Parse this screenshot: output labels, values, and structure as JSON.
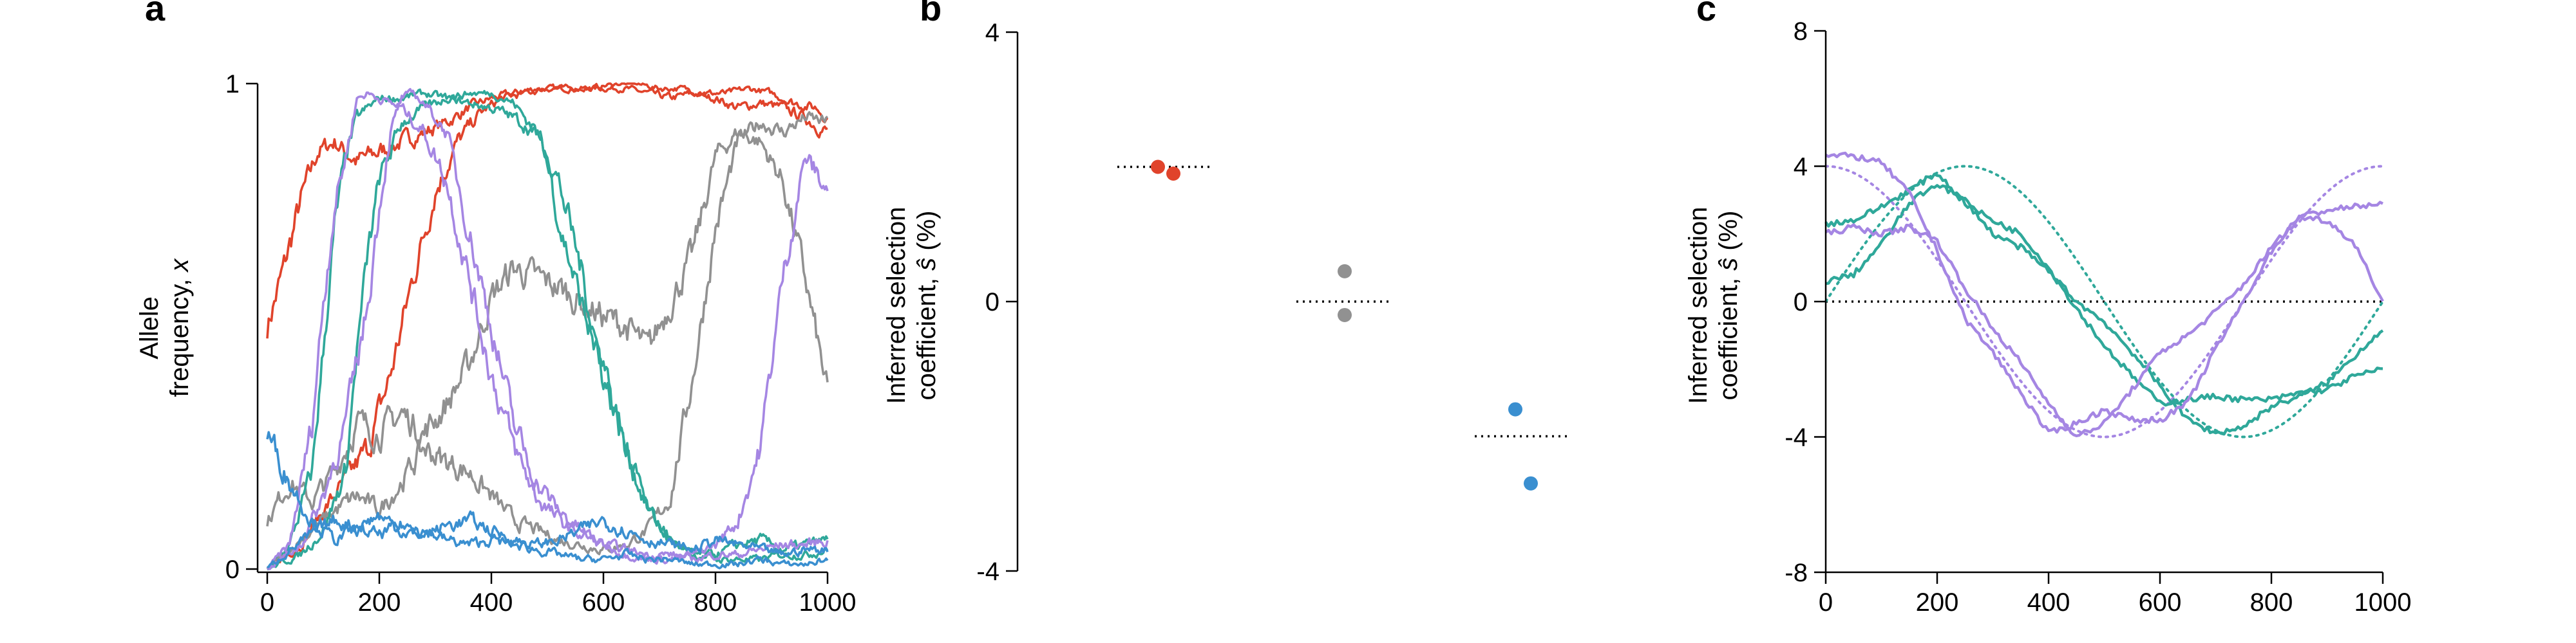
{
  "colors": {
    "red": "#e0432b",
    "gray": "#919191",
    "teal": "#2fa89a",
    "purple": "#a586e3",
    "blue": "#3a8fd0",
    "black": "#000000"
  },
  "panels": {
    "a": "a",
    "b": "b",
    "c": "c"
  },
  "chart_data": [
    {
      "panel": "a",
      "type": "line",
      "xlabel": "",
      "ylabel_line1": "Allele",
      "ylabel_line2_text": "frequency, ",
      "ylabel_line2_var": "x",
      "xlim": [
        0,
        1000
      ],
      "ylim": [
        0,
        1
      ],
      "xticks": [
        "0",
        "200",
        "400",
        "600",
        "800",
        "1000"
      ],
      "yticks": [
        "0",
        "1"
      ],
      "series": [
        {
          "color": "red",
          "x": [
            0,
            30,
            60,
            90,
            120,
            160,
            200,
            240,
            280,
            320,
            360,
            400,
            440,
            480,
            520,
            560,
            600,
            640,
            680,
            720,
            760,
            800,
            840,
            880,
            920,
            960,
            1000
          ],
          "y": [
            0.5,
            0.62,
            0.76,
            0.86,
            0.88,
            0.84,
            0.86,
            0.88,
            0.9,
            0.92,
            0.95,
            0.97,
            0.98,
            0.99,
            0.99,
            0.99,
            0.99,
            0.99,
            0.98,
            0.97,
            0.98,
            0.97,
            0.95,
            0.96,
            0.95,
            0.93,
            0.9
          ]
        },
        {
          "color": "red",
          "x": [
            0,
            60,
            100,
            140,
            180,
            220,
            260,
            300,
            340,
            380,
            420,
            460,
            500,
            540,
            580,
            620,
            660,
            700,
            740,
            780,
            820,
            860,
            900,
            940,
            980,
            1000
          ],
          "y": [
            0.0,
            0.05,
            0.12,
            0.18,
            0.25,
            0.4,
            0.6,
            0.78,
            0.88,
            0.94,
            0.97,
            0.98,
            0.99,
            0.99,
            0.99,
            1.0,
            1.0,
            0.99,
            0.99,
            0.98,
            0.98,
            0.99,
            0.98,
            0.96,
            0.95,
            0.93
          ]
        },
        {
          "color": "gray",
          "x": [
            0,
            40,
            80,
            120,
            160,
            200,
            240,
            280,
            320,
            360,
            400,
            440,
            480,
            520,
            560,
            600,
            640,
            680,
            720,
            760,
            800,
            840,
            880,
            920,
            960,
            1000
          ],
          "y": [
            0.1,
            0.18,
            0.14,
            0.2,
            0.3,
            0.28,
            0.32,
            0.28,
            0.34,
            0.42,
            0.56,
            0.62,
            0.6,
            0.58,
            0.55,
            0.52,
            0.5,
            0.45,
            0.55,
            0.65,
            0.85,
            0.9,
            0.88,
            0.8,
            0.6,
            0.36
          ]
        },
        {
          "color": "gray",
          "x": [
            0,
            40,
            80,
            120,
            160,
            200,
            240,
            280,
            320,
            360,
            400,
            440,
            480,
            520,
            560,
            600,
            640,
            680,
            720,
            760,
            800,
            840,
            880,
            920,
            960,
            1000
          ],
          "y": [
            0.0,
            0.04,
            0.08,
            0.12,
            0.15,
            0.12,
            0.18,
            0.25,
            0.22,
            0.2,
            0.15,
            0.1,
            0.08,
            0.06,
            0.05,
            0.04,
            0.05,
            0.08,
            0.15,
            0.4,
            0.7,
            0.88,
            0.92,
            0.9,
            0.93,
            0.92
          ]
        },
        {
          "color": "teal",
          "x": [
            0,
            40,
            80,
            100,
            120,
            140,
            160,
            200,
            240,
            280,
            320,
            360,
            400,
            440,
            480,
            500,
            520,
            560,
            600,
            640,
            680,
            720,
            760,
            800,
            840,
            880,
            920,
            960,
            1000
          ],
          "y": [
            0.0,
            0.05,
            0.2,
            0.45,
            0.7,
            0.85,
            0.93,
            0.97,
            0.97,
            0.98,
            0.97,
            0.96,
            0.95,
            0.93,
            0.9,
            0.85,
            0.72,
            0.55,
            0.4,
            0.25,
            0.12,
            0.06,
            0.03,
            0.02,
            0.02,
            0.02,
            0.03,
            0.03,
            0.04
          ]
        },
        {
          "color": "teal",
          "x": [
            0,
            60,
            100,
            140,
            160,
            180,
            200,
            240,
            280,
            320,
            360,
            400,
            440,
            480,
            520,
            560,
            600,
            640,
            680,
            720,
            760,
            800,
            840,
            880,
            920,
            960,
            1000
          ],
          "y": [
            0.0,
            0.03,
            0.08,
            0.2,
            0.45,
            0.65,
            0.8,
            0.92,
            0.95,
            0.97,
            0.98,
            0.98,
            0.96,
            0.9,
            0.8,
            0.62,
            0.4,
            0.25,
            0.12,
            0.06,
            0.03,
            0.03,
            0.05,
            0.06,
            0.04,
            0.05,
            0.06
          ]
        },
        {
          "color": "purple",
          "x": [
            0,
            40,
            80,
            100,
            120,
            140,
            160,
            180,
            200,
            240,
            280,
            320,
            360,
            400,
            440,
            480,
            520,
            560,
            600,
            640,
            680,
            720,
            760,
            800,
            840,
            880,
            920,
            960,
            1000
          ],
          "y": [
            0.0,
            0.05,
            0.3,
            0.55,
            0.75,
            0.85,
            0.97,
            0.98,
            0.97,
            0.95,
            0.9,
            0.8,
            0.6,
            0.4,
            0.25,
            0.15,
            0.1,
            0.07,
            0.05,
            0.04,
            0.03,
            0.03,
            0.02,
            0.03,
            0.03,
            0.04,
            0.05,
            0.05,
            0.06
          ]
        },
        {
          "color": "purple",
          "x": [
            0,
            60,
            100,
            140,
            180,
            200,
            220,
            240,
            260,
            280,
            320,
            360,
            400,
            440,
            480,
            520,
            560,
            600,
            640,
            680,
            720,
            760,
            800,
            840,
            880,
            920,
            960,
            1000
          ],
          "y": [
            0.0,
            0.05,
            0.15,
            0.3,
            0.55,
            0.75,
            0.9,
            0.97,
            0.98,
            0.96,
            0.9,
            0.7,
            0.5,
            0.3,
            0.18,
            0.12,
            0.08,
            0.05,
            0.03,
            0.02,
            0.02,
            0.03,
            0.05,
            0.1,
            0.25,
            0.6,
            0.85,
            0.78
          ]
        },
        {
          "color": "blue",
          "x": [
            0,
            40,
            80,
            120,
            160,
            200,
            240,
            280,
            320,
            360,
            400,
            440,
            480,
            520,
            560,
            600,
            640,
            680,
            720,
            760,
            800,
            840,
            880,
            920,
            960,
            1000
          ],
          "y": [
            0.28,
            0.18,
            0.1,
            0.06,
            0.08,
            0.07,
            0.09,
            0.08,
            0.06,
            0.05,
            0.06,
            0.05,
            0.04,
            0.03,
            0.02,
            0.02,
            0.03,
            0.02,
            0.02,
            0.01,
            0.01,
            0.01,
            0.02,
            0.01,
            0.01,
            0.02
          ]
        },
        {
          "color": "blue",
          "x": [
            0,
            40,
            80,
            120,
            160,
            200,
            240,
            280,
            320,
            360,
            400,
            440,
            480,
            520,
            560,
            600,
            640,
            680,
            720,
            760,
            800,
            840,
            880,
            920,
            960,
            1000
          ],
          "y": [
            0.0,
            0.04,
            0.07,
            0.1,
            0.09,
            0.11,
            0.08,
            0.07,
            0.09,
            0.1,
            0.08,
            0.06,
            0.05,
            0.06,
            0.08,
            0.1,
            0.08,
            0.06,
            0.05,
            0.04,
            0.06,
            0.05,
            0.04,
            0.03,
            0.04,
            0.04
          ]
        }
      ]
    },
    {
      "panel": "b",
      "type": "scatter",
      "ylabel_line1": "Inferred selection",
      "ylabel_line2_text": "coefficient, ",
      "ylabel_line2_var": "ŝ",
      "ylabel_line2_unit": " (%)",
      "ylim": [
        -4,
        4
      ],
      "yticks": [
        "-4",
        "0",
        "4"
      ],
      "groups": [
        {
          "color": "red",
          "true_value": 2,
          "points": [
            2.0,
            1.9
          ]
        },
        {
          "color": "gray",
          "true_value": 0,
          "points": [
            0.45,
            -0.2
          ]
        },
        {
          "color": "blue",
          "true_value": -2,
          "points": [
            -1.6,
            -2.7
          ]
        }
      ]
    },
    {
      "panel": "c",
      "type": "line",
      "ylabel_line1": "Inferred selection",
      "ylabel_line2_text": "coefficient, ",
      "ylabel_line2_var": "ŝ",
      "ylabel_line2_unit": " (%)",
      "xlim": [
        0,
        1000
      ],
      "ylim": [
        -8,
        8
      ],
      "xticks": [
        "0",
        "200",
        "400",
        "600",
        "800",
        "1000"
      ],
      "yticks": [
        "-8",
        "-4",
        "0",
        "4",
        "8"
      ],
      "true_curves": [
        {
          "color": "teal",
          "amplitude": 4,
          "phase_peak": 250
        },
        {
          "color": "purple",
          "amplitude": 4,
          "phase_peak": 0
        }
      ],
      "series": [
        {
          "color": "teal",
          "x": [
            0,
            50,
            100,
            150,
            200,
            250,
            300,
            350,
            400,
            450,
            500,
            550,
            600,
            650,
            700,
            750,
            800,
            850,
            900,
            950,
            1000
          ],
          "y": [
            2.3,
            2.4,
            2.8,
            3.3,
            3.8,
            2.9,
            2.4,
            2.0,
            1.0,
            -0.2,
            -1.3,
            -2.2,
            -3.0,
            -2.9,
            -2.8,
            -2.9,
            -2.9,
            -2.7,
            -2.6,
            -2.2,
            -2.0
          ]
        },
        {
          "color": "teal",
          "x": [
            0,
            50,
            100,
            150,
            200,
            250,
            300,
            350,
            400,
            450,
            500,
            550,
            600,
            650,
            700,
            750,
            800,
            850,
            900,
            950,
            1000
          ],
          "y": [
            0.6,
            0.8,
            1.7,
            2.9,
            3.5,
            3.0,
            2.0,
            1.6,
            0.9,
            0.0,
            -0.6,
            -1.5,
            -2.5,
            -3.5,
            -3.9,
            -3.7,
            -3.1,
            -2.8,
            -2.4,
            -1.6,
            -0.8
          ]
        },
        {
          "color": "purple",
          "x": [
            0,
            50,
            100,
            150,
            200,
            250,
            300,
            350,
            400,
            450,
            500,
            550,
            600,
            650,
            700,
            750,
            800,
            850,
            900,
            950,
            1000
          ],
          "y": [
            4.3,
            4.3,
            4.1,
            3.2,
            1.5,
            -0.5,
            -1.5,
            -2.7,
            -3.9,
            -3.6,
            -3.2,
            -3.5,
            -3.5,
            -3.0,
            -1.4,
            0.0,
            1.5,
            2.5,
            2.7,
            2.8,
            2.9
          ]
        },
        {
          "color": "purple",
          "x": [
            0,
            50,
            100,
            150,
            200,
            250,
            300,
            350,
            400,
            450,
            500,
            550,
            600,
            650,
            700,
            750,
            800,
            850,
            900,
            950,
            1000
          ],
          "y": [
            2.0,
            2.2,
            2.0,
            2.2,
            1.8,
            0.4,
            -0.8,
            -1.8,
            -3.0,
            -4.0,
            -3.6,
            -2.6,
            -1.5,
            -1.0,
            -0.3,
            0.5,
            1.6,
            2.5,
            2.4,
            1.7,
            0.0
          ]
        }
      ]
    }
  ]
}
